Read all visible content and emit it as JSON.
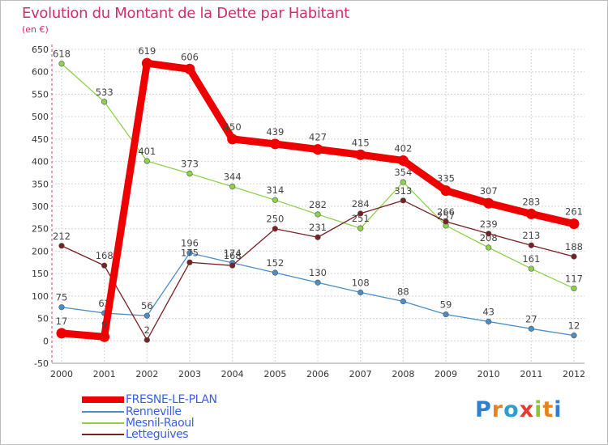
{
  "header": {
    "title": "Evolution du Montant de la Dette par Habitant",
    "subtitle": "(en €)"
  },
  "chart_data": {
    "type": "line",
    "title": "Evolution du Montant de la Dette par Habitant",
    "ylabel": "(en €)",
    "xlabel": "",
    "ylim": [
      -50,
      650
    ],
    "ytick_step": 50,
    "grid": true,
    "categories": [
      "2000",
      "2001",
      "2002",
      "2003",
      "2004",
      "2005",
      "2006",
      "2007",
      "2008",
      "2009",
      "2010",
      "2011",
      "2012"
    ],
    "series": [
      {
        "name": "Renneville",
        "color": "#4a8ec8",
        "values": [
          75,
          62,
          56,
          196,
          174,
          152,
          130,
          108,
          88,
          59,
          43,
          27,
          12
        ]
      },
      {
        "name": "Mesnil-Raoul",
        "color": "#8fd24a",
        "values": [
          618,
          533,
          401,
          373,
          344,
          314,
          282,
          251,
          354,
          257,
          208,
          161,
          117
        ]
      },
      {
        "name": "Letteguives",
        "color": "#7a1f24",
        "values": [
          212,
          168,
          2,
          175,
          168,
          250,
          231,
          284,
          313,
          266,
          239,
          213,
          188
        ]
      },
      {
        "name": "FRESNE-LE-PLAN",
        "color": "#ee0000",
        "values": [
          17,
          9,
          619,
          606,
          450,
          439,
          427,
          415,
          402,
          335,
          307,
          283,
          261
        ]
      }
    ],
    "legend_position": "bottom-left"
  },
  "legend": [
    {
      "label": "FRESNE-LE-PLAN",
      "color": "#ee0000",
      "text_color": "#3a5fe0"
    },
    {
      "label": "Renneville",
      "color": "#4a8ec8",
      "text_color": "#3a5fe0"
    },
    {
      "label": "Mesnil-Raoul",
      "color": "#8fd24a",
      "text_color": "#3a5fe0"
    },
    {
      "label": "Letteguives",
      "color": "#7a1f24",
      "text_color": "#3a5fe0"
    }
  ],
  "logo": {
    "letters": [
      "P",
      "r",
      "o",
      "x",
      "i",
      "t",
      "i"
    ],
    "colors": [
      "#2d7fd0",
      "#e8821e",
      "#2d9ed0",
      "#e83b2e",
      "#8bc53f",
      "#e8821e",
      "#2d7fd0"
    ]
  }
}
